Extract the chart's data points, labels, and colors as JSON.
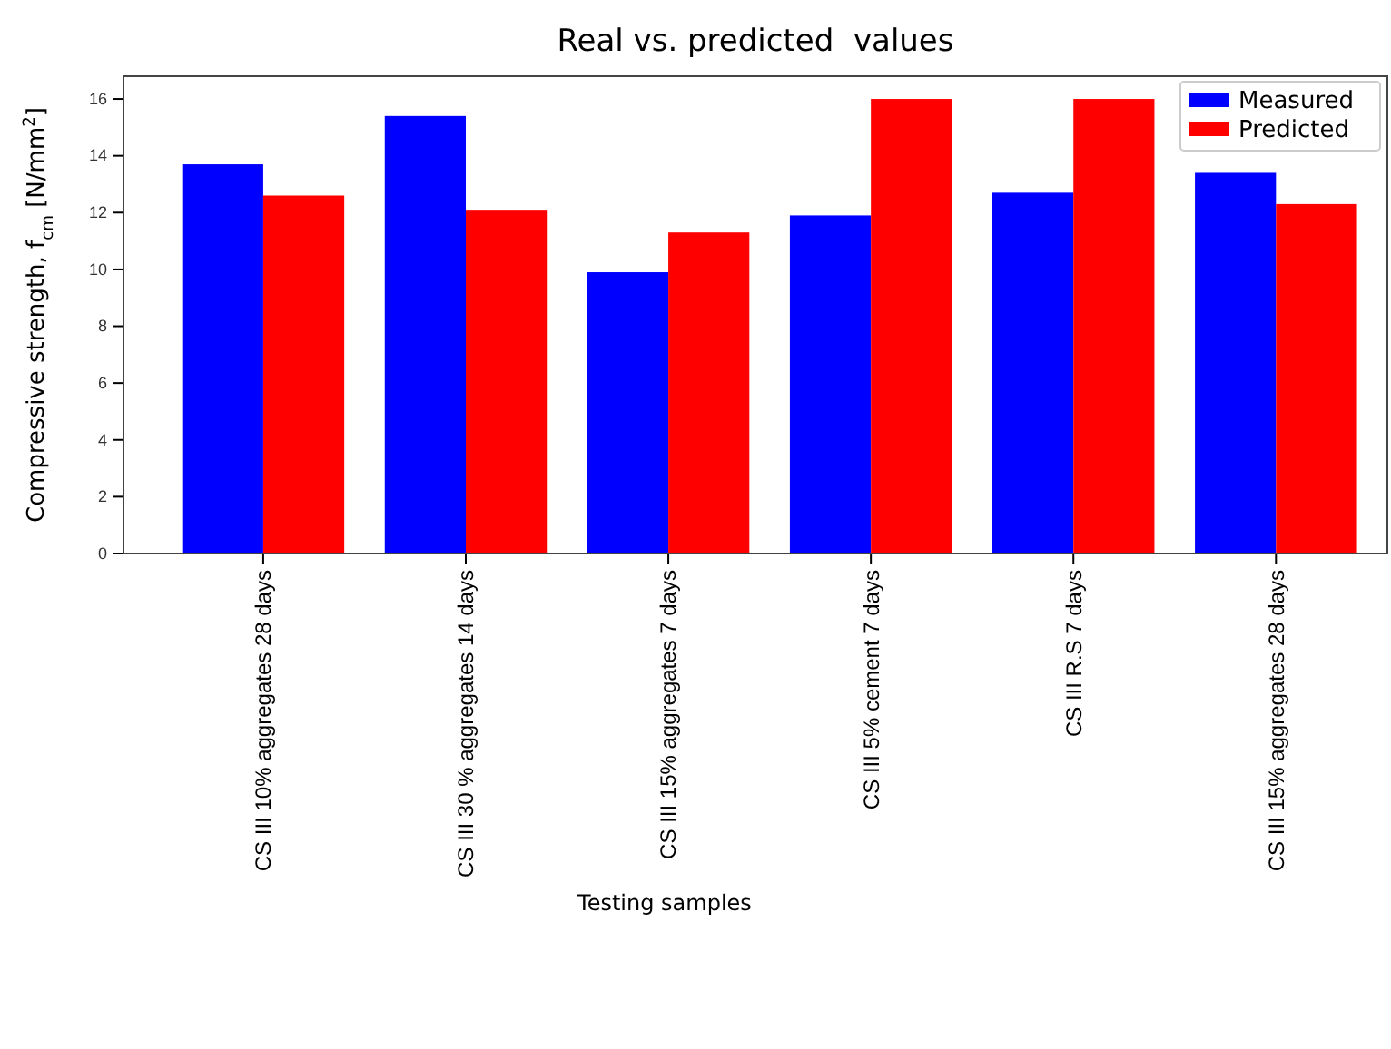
{
  "chart_data": {
    "type": "bar",
    "title": "Real vs. predicted  values",
    "xlabel": "Testing samples",
    "ylabel": "Compressive strength, f$_{cm}$ [N/mm$^{2}$]",
    "categories": [
      "CS III 10% aggregates 28 days",
      "CS III 30 % aggregates 14 days",
      "CS III 15% aggregates 7 days",
      "CS III 5% cement 7 days",
      "CS III R.S 7 days",
      "CS III 15% aggregates 28 days"
    ],
    "series": [
      {
        "name": "Measured",
        "color": "#0000ff",
        "values": [
          13.7,
          15.4,
          9.9,
          11.9,
          12.7,
          13.4
        ]
      },
      {
        "name": "Predicted",
        "color": "#ff0000",
        "values": [
          12.6,
          12.1,
          11.3,
          16.0,
          16.0,
          12.3
        ]
      }
    ],
    "ylim": [
      0,
      16.8
    ],
    "yticks": [
      0,
      2,
      4,
      6,
      8,
      10,
      12,
      14,
      16
    ],
    "grid": false,
    "legend": "top right"
  }
}
